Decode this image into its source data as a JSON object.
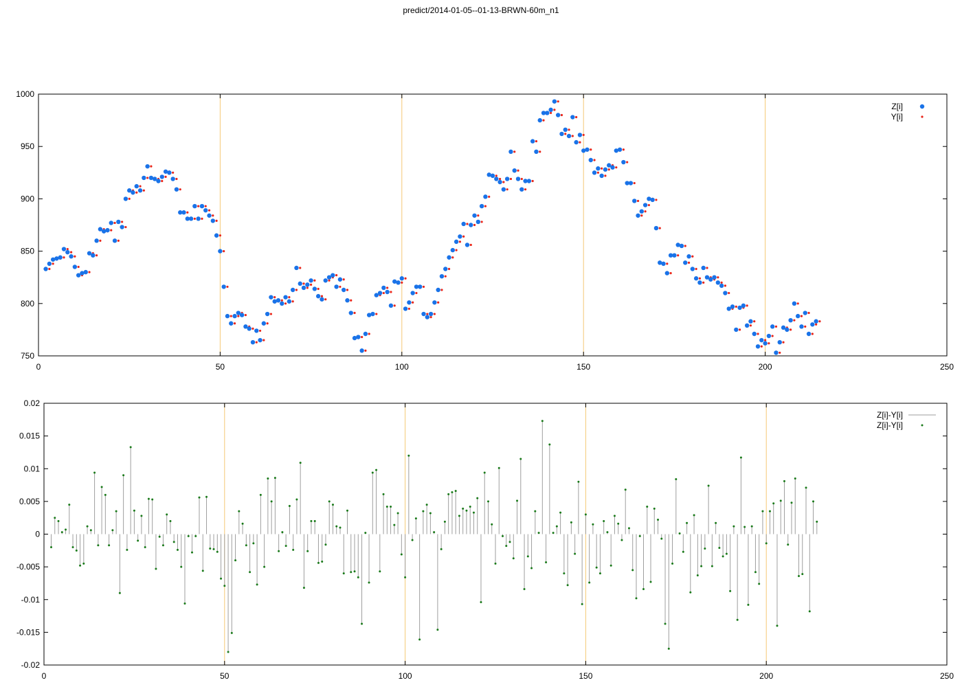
{
  "page": {
    "title": "predict/2014-01-05--01-13-BRWN-60m_n1"
  },
  "colors": {
    "z_points": "#1a73e8",
    "y_points": "#e8251a",
    "diff_line": "#9e9e9e",
    "diff_points": "#1a7a1a",
    "vertical_markers": "#f5c875",
    "axis": "#000000"
  },
  "chart_data": [
    {
      "type": "scatter",
      "title": "",
      "xlabel": "",
      "ylabel": "",
      "xlim": [
        0,
        250
      ],
      "ylim": [
        750,
        1000
      ],
      "x_ticks": [
        0,
        50,
        100,
        150,
        200,
        250
      ],
      "y_ticks": [
        750,
        800,
        850,
        900,
        950,
        1000
      ],
      "vertical_markers": [
        50,
        100,
        150,
        200
      ],
      "grid": false,
      "legend_position": "top-right",
      "x_start": 2,
      "series": [
        {
          "name": "Z[i]",
          "marker": "large-dot",
          "values": [
            833,
            838,
            842,
            843,
            844,
            852,
            849,
            845,
            835,
            827,
            829,
            830,
            848,
            846,
            860,
            871,
            869,
            870,
            877,
            860,
            878,
            873,
            900,
            908,
            906,
            912,
            908,
            920,
            931,
            920,
            919,
            917,
            921,
            926,
            925,
            919,
            909,
            887,
            887,
            881,
            881,
            893,
            881,
            893,
            889,
            884,
            879,
            865,
            850,
            816,
            788,
            781,
            788,
            791,
            789,
            778,
            776,
            763,
            774,
            765,
            781,
            790,
            806,
            802,
            803,
            800,
            806,
            802,
            813,
            834,
            819,
            815,
            818,
            822,
            814,
            807,
            804,
            822,
            825,
            827,
            816,
            823,
            813,
            803,
            791,
            767,
            768,
            755,
            771,
            789,
            790,
            808,
            810,
            815,
            811,
            798,
            821,
            820,
            824,
            795,
            801,
            810,
            816,
            816,
            790,
            787,
            790,
            801,
            813,
            826,
            833,
            844,
            851,
            859,
            864,
            876,
            856,
            875,
            884,
            878,
            893,
            902,
            923,
            922,
            919,
            916,
            909,
            919,
            945,
            927,
            919,
            909,
            917,
            917,
            955,
            945,
            975,
            982,
            982,
            985,
            993,
            980,
            962,
            966,
            960,
            978,
            954,
            961,
            946,
            947,
            937,
            925,
            929,
            922,
            928,
            932,
            930,
            946,
            947,
            935,
            915,
            915,
            898,
            884,
            888,
            894,
            900,
            899,
            872,
            839,
            838,
            829,
            846,
            846,
            856,
            855,
            839,
            845,
            833,
            824,
            820,
            834,
            825,
            823,
            825,
            820,
            817,
            810,
            795,
            797,
            775,
            796,
            798,
            779,
            783,
            771,
            759,
            765,
            762,
            769,
            778,
            753,
            763,
            777,
            775,
            784,
            800,
            788,
            778,
            791,
            771,
            780,
            783
          ]
        },
        {
          "name": "Y[i]",
          "marker": "small-dot",
          "values": [
            833,
            838,
            842,
            843,
            844,
            852,
            849,
            845,
            835,
            827,
            829,
            830,
            848,
            846,
            860,
            871,
            869,
            870,
            877,
            860,
            878,
            873,
            900,
            908,
            906,
            912,
            908,
            920,
            931,
            920,
            919,
            917,
            921,
            926,
            925,
            919,
            909,
            887,
            887,
            881,
            881,
            893,
            881,
            893,
            889,
            884,
            879,
            865,
            850,
            816,
            788,
            781,
            788,
            791,
            789,
            778,
            776,
            763,
            774,
            765,
            781,
            790,
            806,
            802,
            803,
            800,
            806,
            802,
            813,
            834,
            819,
            815,
            818,
            822,
            814,
            807,
            804,
            822,
            825,
            827,
            816,
            823,
            813,
            803,
            791,
            767,
            768,
            755,
            771,
            789,
            790,
            808,
            810,
            815,
            811,
            798,
            821,
            820,
            824,
            795,
            801,
            810,
            816,
            816,
            790,
            787,
            790,
            801,
            813,
            826,
            833,
            844,
            851,
            859,
            864,
            876,
            856,
            875,
            884,
            878,
            893,
            902,
            923,
            922,
            919,
            916,
            909,
            919,
            945,
            927,
            919,
            909,
            917,
            917,
            955,
            945,
            975,
            982,
            982,
            985,
            993,
            980,
            962,
            966,
            960,
            978,
            954,
            961,
            946,
            947,
            937,
            925,
            929,
            922,
            928,
            932,
            930,
            946,
            947,
            935,
            915,
            915,
            898,
            884,
            888,
            894,
            900,
            899,
            872,
            839,
            838,
            829,
            846,
            846,
            856,
            855,
            839,
            845,
            833,
            824,
            820,
            834,
            825,
            823,
            825,
            820,
            817,
            810,
            795,
            797,
            775,
            796,
            798,
            779,
            783,
            771,
            759,
            765,
            762,
            769,
            778,
            753,
            763,
            777,
            775,
            784,
            800,
            788,
            778,
            791,
            771,
            780,
            783
          ]
        }
      ]
    },
    {
      "type": "line",
      "title": "",
      "xlabel": "",
      "ylabel": "",
      "xlim": [
        0,
        250
      ],
      "ylim": [
        -0.02,
        0.02
      ],
      "x_ticks": [
        0,
        50,
        100,
        150,
        200,
        250
      ],
      "y_ticks": [
        -0.02,
        -0.015,
        -0.01,
        -0.005,
        0,
        0.005,
        0.01,
        0.015,
        0.02
      ],
      "y_tick_labels": [
        "-0.02",
        "-0.015",
        "-0.01",
        "-0.005",
        "0",
        "0.005",
        "0.01",
        "0.015",
        "0.02"
      ],
      "vertical_markers": [
        50,
        100,
        150,
        200
      ],
      "grid": false,
      "legend_position": "top-right",
      "x_start": 2,
      "series": [
        {
          "name": "Z[i]-Y[i]",
          "style": "impulse-line",
          "values": [
            -0.002,
            0.0025,
            0.002,
            0.0003,
            0.0007,
            0.0045,
            -0.002,
            -0.0025,
            -0.0048,
            -0.0045,
            0.0012,
            0.0006,
            0.0094,
            -0.0017,
            0.0072,
            0.006,
            -0.0017,
            0.0006,
            0.0035,
            -0.009,
            0.009,
            -0.0024,
            0.0133,
            0.0036,
            -0.001,
            0.0028,
            -0.002,
            0.0054,
            0.0053,
            -0.0053,
            -0.0004,
            -0.0017,
            0.003,
            0.002,
            -0.0012,
            -0.0024,
            -0.005,
            -0.0106,
            -0.0003,
            -0.0028,
            -0.0003,
            0.0056,
            -0.0056,
            0.0057,
            -0.0022,
            -0.0023,
            -0.0027,
            -0.0068,
            -0.0079,
            -0.018,
            -0.0151,
            -0.004,
            0.0035,
            0.0016,
            -0.0017,
            -0.0058,
            -0.0014,
            -0.0077,
            0.006,
            -0.005,
            0.0085,
            0.005,
            0.0086,
            -0.0026,
            0.0003,
            -0.0018,
            0.0043,
            -0.0024,
            0.0053,
            0.0109,
            -0.0082,
            -0.0026,
            0.002,
            0.002,
            -0.0044,
            -0.0042,
            -0.0016,
            0.005,
            0.0045,
            0.0012,
            0.001,
            -0.006,
            0.0036,
            -0.0058,
            -0.0057,
            -0.0066,
            -0.0137,
            0.0002,
            -0.0074,
            0.0094,
            0.0098,
            -0.0057,
            0.0061,
            0.0042,
            0.0042,
            0.0014,
            0.0032,
            -0.0031,
            -0.0066,
            0.012,
            -0.0009,
            0.0024,
            -0.0161,
            0.0035,
            0.0045,
            0.0032,
            0.0003,
            -0.0146,
            -0.0023,
            0.0019,
            0.0061,
            0.0064,
            0.0066,
            0.0028,
            0.0039,
            0.0036,
            0.0042,
            0.0033,
            0.0055,
            -0.0104,
            0.0094,
            0.005,
            0.0015,
            -0.0045,
            0.0101,
            -0.0003,
            -0.0018,
            -0.0012,
            -0.0037,
            0.0051,
            0.0115,
            -0.0084,
            -0.0034,
            -0.0052,
            0.0035,
            0.0002,
            0.0173,
            -0.0043,
            0.0137,
            0.0002,
            0.0012,
            0.0033,
            -0.006,
            -0.0078,
            0.0018,
            -0.003,
            0.008,
            -0.0107,
            0.003,
            -0.0074,
            0.0015,
            -0.0051,
            -0.006,
            0.002,
            0.0003,
            -0.0048,
            0.0028,
            0.0016,
            -0.0009,
            0.0068,
            0.0009,
            -0.0055,
            -0.0098,
            -0.0003,
            -0.0084,
            0.0042,
            -0.0073,
            0.0039,
            0.0022,
            -0.0007,
            -0.0137,
            -0.0175,
            -0.0045,
            0.0084,
            0.0001,
            -0.0027,
            0.0017,
            -0.0089,
            0.0029,
            -0.0063,
            -0.0049,
            -0.0022,
            0.0074,
            -0.0049,
            0.0017,
            -0.0021,
            -0.0034,
            -0.003,
            -0.0087,
            0.0012,
            -0.0131,
            0.0117,
            0.0011,
            -0.0108,
            0.0012,
            -0.0058,
            -0.0076,
            0.0035,
            -0.0014,
            0.0035,
            0.0047,
            -0.014,
            0.0051,
            0.0081,
            -0.0016,
            0.0048,
            0.0085,
            -0.0064,
            -0.0061,
            0.0071,
            -0.0118,
            0.005,
            0.0019
          ]
        },
        {
          "name": "Z[i]-Y[i]",
          "style": "small-dot",
          "values": [
            -0.002,
            0.0025,
            0.002,
            0.0003,
            0.0007,
            0.0045,
            -0.002,
            -0.0025,
            -0.0048,
            -0.0045,
            0.0012,
            0.0006,
            0.0094,
            -0.0017,
            0.0072,
            0.006,
            -0.0017,
            0.0006,
            0.0035,
            -0.009,
            0.009,
            -0.0024,
            0.0133,
            0.0036,
            -0.001,
            0.0028,
            -0.002,
            0.0054,
            0.0053,
            -0.0053,
            -0.0004,
            -0.0017,
            0.003,
            0.002,
            -0.0012,
            -0.0024,
            -0.005,
            -0.0106,
            -0.0003,
            -0.0028,
            -0.0003,
            0.0056,
            -0.0056,
            0.0057,
            -0.0022,
            -0.0023,
            -0.0027,
            -0.0068,
            -0.0079,
            -0.018,
            -0.0151,
            -0.004,
            0.0035,
            0.0016,
            -0.0017,
            -0.0058,
            -0.0014,
            -0.0077,
            0.006,
            -0.005,
            0.0085,
            0.005,
            0.0086,
            -0.0026,
            0.0003,
            -0.0018,
            0.0043,
            -0.0024,
            0.0053,
            0.0109,
            -0.0082,
            -0.0026,
            0.002,
            0.002,
            -0.0044,
            -0.0042,
            -0.0016,
            0.005,
            0.0045,
            0.0012,
            0.001,
            -0.006,
            0.0036,
            -0.0058,
            -0.0057,
            -0.0066,
            -0.0137,
            0.0002,
            -0.0074,
            0.0094,
            0.0098,
            -0.0057,
            0.0061,
            0.0042,
            0.0042,
            0.0014,
            0.0032,
            -0.0031,
            -0.0066,
            0.012,
            -0.0009,
            0.0024,
            -0.0161,
            0.0035,
            0.0045,
            0.0032,
            0.0003,
            -0.0146,
            -0.0023,
            0.0019,
            0.0061,
            0.0064,
            0.0066,
            0.0028,
            0.0039,
            0.0036,
            0.0042,
            0.0033,
            0.0055,
            -0.0104,
            0.0094,
            0.005,
            0.0015,
            -0.0045,
            0.0101,
            -0.0003,
            -0.0018,
            -0.0012,
            -0.0037,
            0.0051,
            0.0115,
            -0.0084,
            -0.0034,
            -0.0052,
            0.0035,
            0.0002,
            0.0173,
            -0.0043,
            0.0137,
            0.0002,
            0.0012,
            0.0033,
            -0.006,
            -0.0078,
            0.0018,
            -0.003,
            0.008,
            -0.0107,
            0.003,
            -0.0074,
            0.0015,
            -0.0051,
            -0.006,
            0.002,
            0.0003,
            -0.0048,
            0.0028,
            0.0016,
            -0.0009,
            0.0068,
            0.0009,
            -0.0055,
            -0.0098,
            -0.0003,
            -0.0084,
            0.0042,
            -0.0073,
            0.0039,
            0.0022,
            -0.0007,
            -0.0137,
            -0.0175,
            -0.0045,
            0.0084,
            0.0001,
            -0.0027,
            0.0017,
            -0.0089,
            0.0029,
            -0.0063,
            -0.0049,
            -0.0022,
            0.0074,
            -0.0049,
            0.0017,
            -0.0021,
            -0.0034,
            -0.003,
            -0.0087,
            0.0012,
            -0.0131,
            0.0117,
            0.0011,
            -0.0108,
            0.0012,
            -0.0058,
            -0.0076,
            0.0035,
            -0.0014,
            0.0035,
            0.0047,
            -0.014,
            0.0051,
            0.0081,
            -0.0016,
            0.0048,
            0.0085,
            -0.0064,
            -0.0061,
            0.0071,
            -0.0118,
            0.005,
            0.0019
          ]
        }
      ]
    }
  ]
}
